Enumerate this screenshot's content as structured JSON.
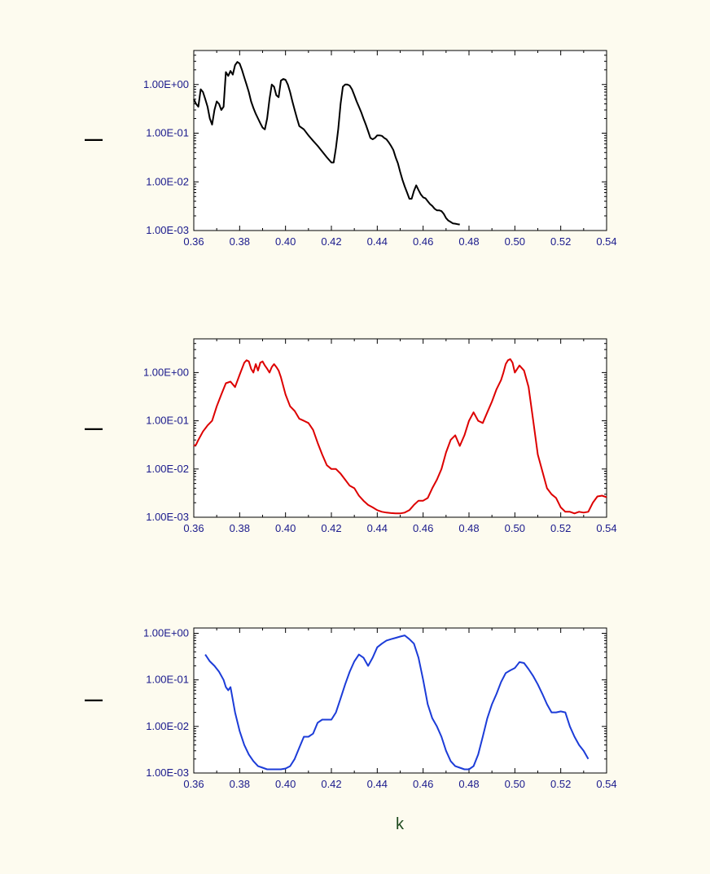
{
  "chart_data": [
    {
      "type": "line",
      "ylabel": "—",
      "xlabel": "",
      "yscale": "log",
      "xlim": [
        0.36,
        0.54
      ],
      "ylim": [
        0.001,
        5
      ],
      "x_ticks": [
        "0.36",
        "0.38",
        "0.40",
        "0.42",
        "0.44",
        "0.46",
        "0.48",
        "0.50",
        "0.52",
        "0.54"
      ],
      "y_ticks": [
        "1.00E+00",
        "1.00E-01",
        "1.00E-02",
        "1.00E-03"
      ],
      "grid": false,
      "series": [
        {
          "color": "#000000",
          "x": [
            0.36,
            0.361,
            0.362,
            0.363,
            0.364,
            0.365,
            0.366,
            0.367,
            0.368,
            0.369,
            0.37,
            0.371,
            0.372,
            0.373,
            0.374,
            0.375,
            0.376,
            0.377,
            0.378,
            0.379,
            0.38,
            0.381,
            0.382,
            0.383,
            0.384,
            0.385,
            0.386,
            0.387,
            0.388,
            0.389,
            0.39,
            0.391,
            0.392,
            0.393,
            0.394,
            0.395,
            0.396,
            0.397,
            0.398,
            0.399,
            0.4,
            0.401,
            0.402,
            0.403,
            0.404,
            0.405,
            0.406,
            0.408,
            0.41,
            0.412,
            0.414,
            0.416,
            0.418,
            0.42,
            0.421,
            0.422,
            0.423,
            0.424,
            0.425,
            0.426,
            0.427,
            0.428,
            0.429,
            0.43,
            0.431,
            0.432,
            0.433,
            0.434,
            0.435,
            0.436,
            0.437,
            0.438,
            0.439,
            0.44,
            0.441,
            0.442,
            0.443,
            0.444,
            0.445,
            0.446,
            0.447,
            0.448,
            0.449,
            0.45,
            0.451,
            0.452,
            0.453,
            0.454,
            0.455,
            0.456,
            0.457,
            0.458,
            0.459,
            0.46,
            0.461,
            0.462,
            0.463,
            0.464,
            0.465,
            0.466,
            0.467,
            0.468,
            0.469,
            0.47,
            0.471,
            0.472,
            0.473,
            0.474,
            0.475,
            0.476
          ],
          "y": [
            0.5,
            0.4,
            0.35,
            0.8,
            0.7,
            0.5,
            0.35,
            0.2,
            0.15,
            0.3,
            0.45,
            0.4,
            0.3,
            0.35,
            1.8,
            1.5,
            1.9,
            1.6,
            2.5,
            2.9,
            2.7,
            2.0,
            1.4,
            1.0,
            0.7,
            0.45,
            0.33,
            0.25,
            0.2,
            0.16,
            0.13,
            0.12,
            0.2,
            0.5,
            1.0,
            0.9,
            0.6,
            0.55,
            1.2,
            1.3,
            1.25,
            1.0,
            0.7,
            0.45,
            0.3,
            0.2,
            0.14,
            0.12,
            0.09,
            0.07,
            0.055,
            0.042,
            0.032,
            0.025,
            0.025,
            0.05,
            0.12,
            0.4,
            0.9,
            1.0,
            1.0,
            0.95,
            0.8,
            0.6,
            0.45,
            0.35,
            0.27,
            0.2,
            0.15,
            0.11,
            0.08,
            0.075,
            0.08,
            0.09,
            0.09,
            0.088,
            0.08,
            0.075,
            0.065,
            0.055,
            0.045,
            0.032,
            0.024,
            0.016,
            0.011,
            0.008,
            0.006,
            0.0045,
            0.0045,
            0.0065,
            0.0085,
            0.0068,
            0.0055,
            0.0048,
            0.0046,
            0.004,
            0.0035,
            0.0032,
            0.0028,
            0.0026,
            0.0026,
            0.0025,
            0.0022,
            0.0018,
            0.0016,
            0.0015,
            0.0014,
            0.00138,
            0.00135,
            0.00133
          ]
        }
      ]
    },
    {
      "type": "line",
      "ylabel": "—",
      "xlabel": "",
      "yscale": "log",
      "xlim": [
        0.36,
        0.54
      ],
      "ylim": [
        0.001,
        5
      ],
      "x_ticks": [
        "0.36",
        "0.38",
        "0.40",
        "0.42",
        "0.44",
        "0.46",
        "0.48",
        "0.50",
        "0.52",
        "0.54"
      ],
      "y_ticks": [
        "1.00E+00",
        "1.00E-01",
        "1.00E-02",
        "1.00E-03"
      ],
      "grid": false,
      "series": [
        {
          "color": "#dd0000",
          "x": [
            0.36,
            0.361,
            0.362,
            0.364,
            0.366,
            0.368,
            0.37,
            0.372,
            0.374,
            0.376,
            0.378,
            0.38,
            0.382,
            0.383,
            0.384,
            0.385,
            0.386,
            0.387,
            0.388,
            0.389,
            0.39,
            0.391,
            0.392,
            0.393,
            0.394,
            0.395,
            0.396,
            0.397,
            0.398,
            0.4,
            0.402,
            0.404,
            0.406,
            0.408,
            0.41,
            0.412,
            0.414,
            0.416,
            0.418,
            0.42,
            0.422,
            0.424,
            0.426,
            0.428,
            0.43,
            0.432,
            0.434,
            0.436,
            0.438,
            0.44,
            0.442,
            0.444,
            0.446,
            0.448,
            0.45,
            0.452,
            0.454,
            0.456,
            0.458,
            0.46,
            0.462,
            0.464,
            0.466,
            0.468,
            0.47,
            0.472,
            0.474,
            0.476,
            0.478,
            0.48,
            0.482,
            0.484,
            0.486,
            0.488,
            0.49,
            0.492,
            0.494,
            0.495,
            0.496,
            0.497,
            0.498,
            0.499,
            0.5,
            0.502,
            0.504,
            0.506,
            0.508,
            0.51,
            0.512,
            0.514,
            0.516,
            0.518,
            0.52,
            0.522,
            0.524,
            0.526,
            0.528,
            0.53,
            0.532,
            0.534,
            0.536,
            0.538,
            0.54
          ],
          "y": [
            0.03,
            0.032,
            0.04,
            0.06,
            0.08,
            0.1,
            0.2,
            0.35,
            0.6,
            0.65,
            0.5,
            0.9,
            1.6,
            1.8,
            1.7,
            1.2,
            1.0,
            1.5,
            1.1,
            1.6,
            1.7,
            1.4,
            1.2,
            1.0,
            1.3,
            1.5,
            1.3,
            1.1,
            0.8,
            0.35,
            0.2,
            0.16,
            0.11,
            0.1,
            0.09,
            0.065,
            0.035,
            0.02,
            0.012,
            0.01,
            0.01,
            0.008,
            0.006,
            0.0045,
            0.004,
            0.0028,
            0.0022,
            0.0018,
            0.0016,
            0.0014,
            0.0013,
            0.00125,
            0.00122,
            0.0012,
            0.0012,
            0.00125,
            0.0014,
            0.0018,
            0.0022,
            0.0022,
            0.0025,
            0.004,
            0.006,
            0.01,
            0.022,
            0.04,
            0.05,
            0.03,
            0.05,
            0.1,
            0.15,
            0.1,
            0.09,
            0.15,
            0.25,
            0.45,
            0.7,
            1.0,
            1.5,
            1.8,
            1.9,
            1.6,
            1.0,
            1.4,
            1.1,
            0.5,
            0.1,
            0.02,
            0.009,
            0.004,
            0.003,
            0.0025,
            0.0016,
            0.0013,
            0.0013,
            0.0012,
            0.0013,
            0.00125,
            0.0013,
            0.002,
            0.0027,
            0.0028,
            0.0026
          ]
        }
      ]
    },
    {
      "type": "line",
      "ylabel": "—",
      "xlabel": "k",
      "yscale": "log",
      "xlim": [
        0.36,
        0.54
      ],
      "ylim": [
        0.001,
        1.3
      ],
      "x_ticks": [
        "0.36",
        "0.38",
        "0.40",
        "0.42",
        "0.44",
        "0.46",
        "0.48",
        "0.50",
        "0.52",
        "0.54"
      ],
      "y_ticks": [
        "1.00E+00",
        "1.00E-01",
        "1.00E-02",
        "1.00E-03"
      ],
      "grid": false,
      "series": [
        {
          "color": "#1c3cd8",
          "x": [
            0.365,
            0.367,
            0.369,
            0.371,
            0.373,
            0.374,
            0.375,
            0.376,
            0.378,
            0.38,
            0.382,
            0.384,
            0.386,
            0.388,
            0.39,
            0.392,
            0.394,
            0.396,
            0.398,
            0.4,
            0.402,
            0.404,
            0.406,
            0.408,
            0.41,
            0.412,
            0.414,
            0.416,
            0.418,
            0.42,
            0.422,
            0.424,
            0.426,
            0.428,
            0.43,
            0.432,
            0.434,
            0.436,
            0.438,
            0.44,
            0.442,
            0.444,
            0.446,
            0.448,
            0.45,
            0.452,
            0.454,
            0.456,
            0.458,
            0.46,
            0.462,
            0.464,
            0.466,
            0.468,
            0.47,
            0.472,
            0.474,
            0.476,
            0.478,
            0.48,
            0.482,
            0.484,
            0.486,
            0.488,
            0.49,
            0.492,
            0.494,
            0.496,
            0.498,
            0.5,
            0.502,
            0.504,
            0.506,
            0.508,
            0.51,
            0.512,
            0.514,
            0.516,
            0.518,
            0.52,
            0.522,
            0.524,
            0.526,
            0.528,
            0.53,
            0.532
          ],
          "y": [
            0.35,
            0.25,
            0.2,
            0.15,
            0.1,
            0.07,
            0.06,
            0.07,
            0.02,
            0.008,
            0.004,
            0.0025,
            0.0018,
            0.0014,
            0.0013,
            0.0012,
            0.0012,
            0.0012,
            0.0012,
            0.00125,
            0.0014,
            0.002,
            0.0035,
            0.006,
            0.006,
            0.007,
            0.012,
            0.014,
            0.014,
            0.014,
            0.02,
            0.04,
            0.08,
            0.15,
            0.25,
            0.35,
            0.3,
            0.2,
            0.3,
            0.5,
            0.6,
            0.7,
            0.75,
            0.8,
            0.85,
            0.9,
            0.75,
            0.6,
            0.3,
            0.1,
            0.03,
            0.015,
            0.01,
            0.006,
            0.003,
            0.0018,
            0.0014,
            0.0013,
            0.0012,
            0.0012,
            0.0014,
            0.0025,
            0.006,
            0.015,
            0.03,
            0.05,
            0.09,
            0.14,
            0.16,
            0.18,
            0.24,
            0.23,
            0.17,
            0.12,
            0.08,
            0.05,
            0.03,
            0.02,
            0.02,
            0.021,
            0.02,
            0.01,
            0.006,
            0.004,
            0.003,
            0.002
          ]
        }
      ]
    }
  ]
}
